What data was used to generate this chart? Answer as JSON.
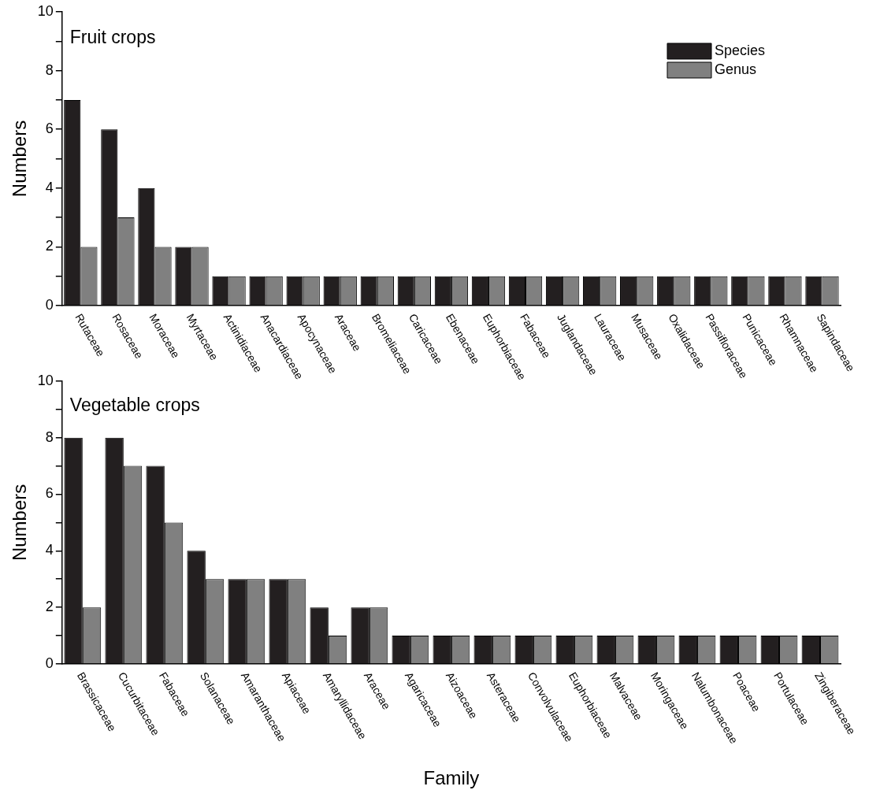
{
  "chart_data": [
    {
      "type": "bar",
      "title": "Fruit crops",
      "ylabel": "Numbers",
      "categories": [
        "Rutaceae",
        "Rosaceae",
        "Moraceae",
        "Myrtaceae",
        "Actinidiaceae",
        "Anacardiaceae",
        "Apocynaceae",
        "Araceae",
        "Bromeliaceae",
        "Caricaceae",
        "Ebenaceae",
        "Euphorbiaceae",
        "Fabaceae",
        "Juglandaceae",
        "Lauraceae",
        "Musaceae",
        "Oxalidaceae",
        "Passifloraceae",
        "Punicaceae",
        "Rhamnaceae",
        "Sapindaceae"
      ],
      "series": [
        {
          "name": "Species",
          "color": "#231f20",
          "values": [
            7,
            6,
            4,
            2,
            1,
            1,
            1,
            1,
            1,
            1,
            1,
            1,
            1,
            1,
            1,
            1,
            1,
            1,
            1,
            1,
            1
          ]
        },
        {
          "name": "Genus",
          "color": "#808080",
          "values": [
            2,
            3,
            2,
            2,
            1,
            1,
            1,
            1,
            1,
            1,
            1,
            1,
            1,
            1,
            1,
            1,
            1,
            1,
            1,
            1,
            1
          ]
        }
      ],
      "ylim": [
        0,
        10
      ],
      "yticks": [
        0,
        {
          "value": 1,
          "label": null
        },
        2,
        {
          "value": 3,
          "label": null
        },
        4,
        {
          "value": 5,
          "label": null
        },
        6,
        {
          "value": 7,
          "label": null
        },
        8,
        {
          "value": 9,
          "label": null
        },
        10
      ],
      "grid": false,
      "legend": "top right"
    },
    {
      "type": "bar",
      "title": "Vegetable crops",
      "ylabel": "Numbers",
      "xlabel": "Family",
      "categories": [
        "Brassicaceae",
        "Cucurbitaceae",
        "Fabaceae",
        "Solanaceae",
        "Amaranthaceae",
        "Apiaceae",
        "Amaryllidaceae",
        "Araceae",
        "Agaricaceae",
        "Aizoaceae",
        "Asteraceae",
        "Convolvulaceae",
        "Euphorbiaceae",
        "Malvaceae",
        "Moringaceae",
        "Nalumbonaceae",
        "Poaceae",
        "Portulaceae",
        "Zingiberaceae"
      ],
      "series": [
        {
          "color": "#231f20",
          "values": [
            8,
            8,
            7,
            4,
            3,
            3,
            2,
            2,
            1,
            1,
            1,
            1,
            1,
            1,
            1,
            1,
            1,
            1,
            1
          ]
        },
        {
          "color": "#808080",
          "values": [
            2,
            7,
            5,
            3,
            3,
            3,
            1,
            2,
            1,
            1,
            1,
            1,
            1,
            1,
            1,
            1,
            1,
            1,
            1
          ]
        }
      ],
      "ylim": [
        0,
        10
      ],
      "yticks": [
        0,
        {
          "value": 1,
          "label": null
        },
        2,
        {
          "value": 3,
          "label": null
        },
        4,
        {
          "value": 5,
          "label": null
        },
        6,
        {
          "value": 7,
          "label": null
        },
        8,
        {
          "value": 9,
          "label": null
        },
        10
      ],
      "grid": false,
      "legend": false
    }
  ]
}
